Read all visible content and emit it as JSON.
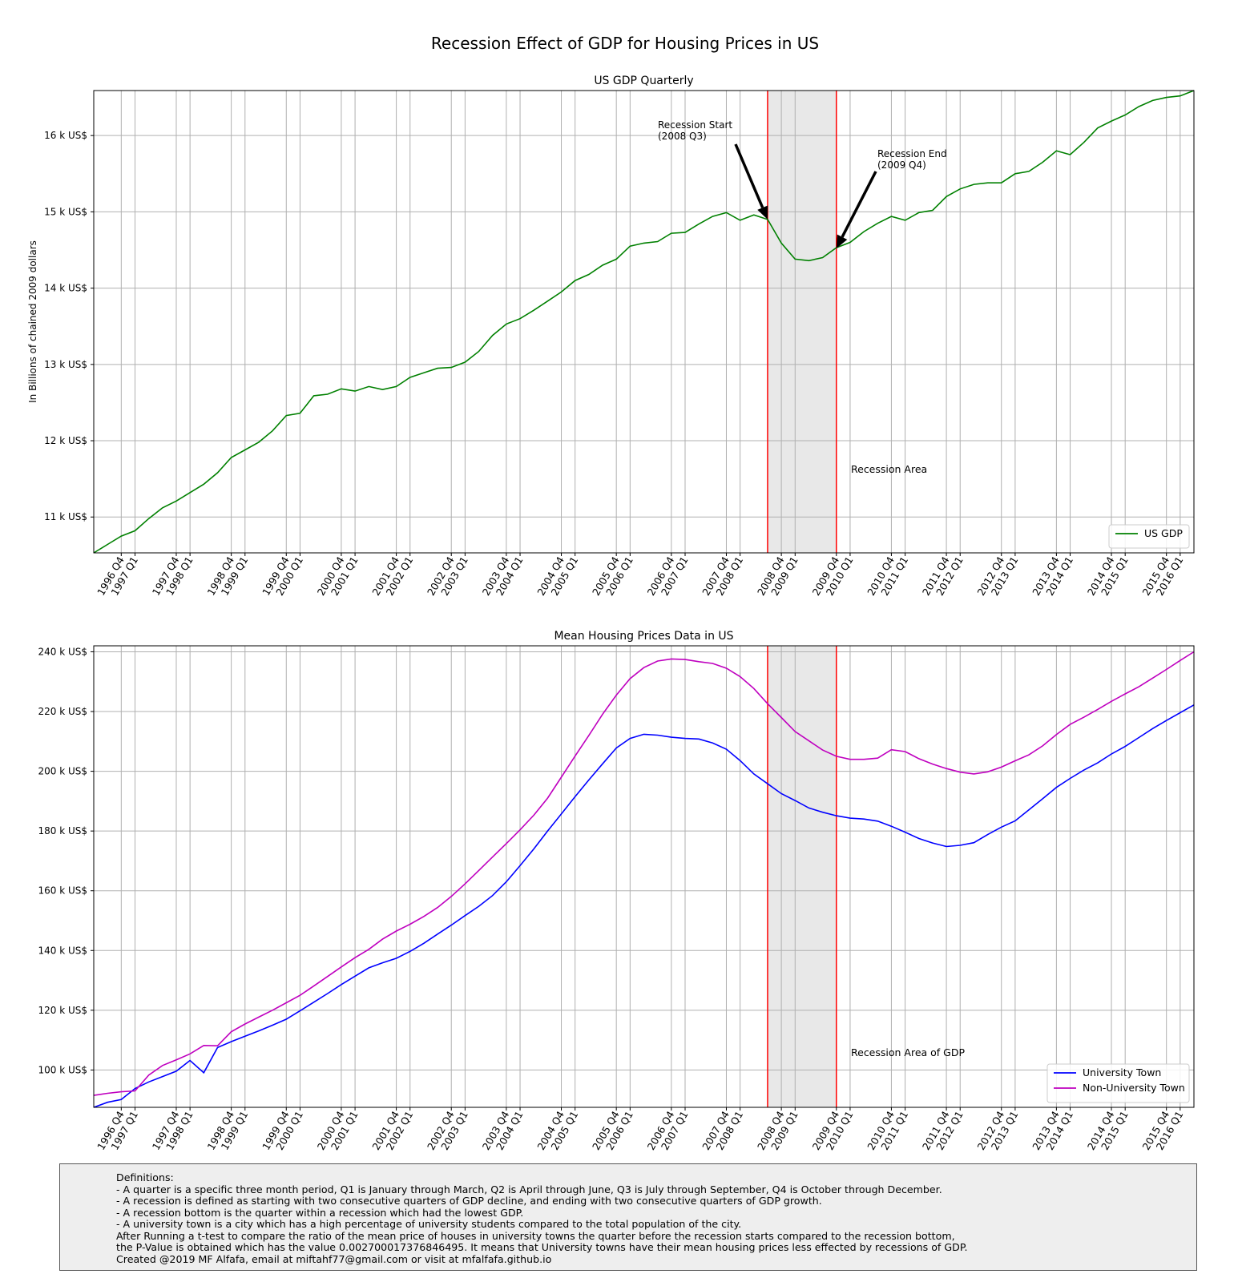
{
  "figure_title": "Recession Effect of GDP for Housing Prices in US",
  "colors": {
    "gdp": "#008000",
    "university": "#0000ff",
    "non_university": "#bf00bf",
    "recession_line": "#ff0000",
    "recession_shade": "#e8e8e8",
    "grid": "#b0b0b0"
  },
  "quarter_ticks": [
    "1996 Q4",
    "1997 Q1",
    "1997 Q4",
    "1998 Q1",
    "1998 Q4",
    "1999 Q1",
    "1999 Q4",
    "2000 Q1",
    "2000 Q4",
    "2001 Q1",
    "2001 Q4",
    "2002 Q1",
    "2002 Q4",
    "2003 Q1",
    "2003 Q4",
    "2004 Q1",
    "2004 Q4",
    "2005 Q1",
    "2005 Q4",
    "2006 Q1",
    "2006 Q4",
    "2007 Q1",
    "2007 Q4",
    "2008 Q1",
    "2008 Q4",
    "2009 Q1",
    "2009 Q4",
    "2010 Q1",
    "2010 Q4",
    "2011 Q1",
    "2011 Q4",
    "2012 Q1",
    "2012 Q4",
    "2013 Q1",
    "2013 Q4",
    "2014 Q1",
    "2014 Q4",
    "2015 Q1",
    "2015 Q4",
    "2016 Q1"
  ],
  "chart_data": [
    {
      "type": "line",
      "title": "US GDP Quarterly",
      "ylabel": "In Billions of chained 2009 dollars",
      "xlabel": "",
      "x_start": "1996 Q2",
      "x_end": "2016 Q2",
      "ylim": [
        10530,
        16590
      ],
      "yticks": [
        11000,
        12000,
        13000,
        14000,
        15000,
        16000
      ],
      "ytick_labels": [
        "11 k US$",
        "12 k US$",
        "13 k US$",
        "14 k US$",
        "15 k US$",
        "16 k US$"
      ],
      "grid": true,
      "legend": "lower right",
      "recession": {
        "start": "2008 Q3",
        "end": "2009 Q4"
      },
      "series": [
        {
          "name": "US GDP",
          "values": [
            10530,
            10640,
            10750,
            10820,
            10980,
            11120,
            11210,
            11320,
            11430,
            11580,
            11780,
            11880,
            11980,
            12130,
            12330,
            12360,
            12590,
            12610,
            12680,
            12650,
            12710,
            12670,
            12710,
            12830,
            12890,
            12950,
            12960,
            13030,
            13170,
            13380,
            13530,
            13600,
            13710,
            13830,
            13950,
            14100,
            14180,
            14300,
            14380,
            14550,
            14590,
            14610,
            14720,
            14730,
            14840,
            14940,
            14990,
            14890,
            14960,
            14900,
            14590,
            14380,
            14360,
            14400,
            14530,
            14600,
            14740,
            14850,
            14940,
            14890,
            14990,
            15020,
            15200,
            15300,
            15360,
            15380,
            15380,
            15500,
            15530,
            15650,
            15800,
            15750,
            15910,
            16100,
            16190,
            16270,
            16380,
            16460,
            16500,
            16520,
            16590
          ]
        }
      ],
      "annotations": [
        {
          "text_lines": [
            "Recession Start",
            "(2008 Q3)"
          ],
          "point": [
            "2008 Q3",
            14900
          ]
        },
        {
          "text_lines": [
            "Recession End",
            "(2009 Q4)"
          ],
          "point": [
            "2009 Q4",
            14520
          ]
        },
        {
          "text_lines": [
            "Recession Area"
          ]
        }
      ]
    },
    {
      "type": "line",
      "title": "Mean Housing Prices Data in US",
      "ylabel": "",
      "xlabel": "",
      "x_start": "1996 Q2",
      "x_end": "2016 Q2",
      "ylim": [
        87500,
        242000
      ],
      "yticks": [
        100000,
        120000,
        140000,
        160000,
        180000,
        200000,
        220000,
        240000
      ],
      "ytick_labels": [
        "100 k US$",
        "120 k US$",
        "140 k US$",
        "160 k US$",
        "180 k US$",
        "200 k US$",
        "220 k US$",
        "240 k US$"
      ],
      "grid": true,
      "legend": "lower right",
      "recession": {
        "start": "2008 Q3",
        "end": "2009 Q4"
      },
      "series": [
        {
          "name": "University Town",
          "values": [
            87500,
            89200,
            90100,
            93800,
            96000,
            97800,
            99600,
            103200,
            99100,
            107500,
            109500,
            111300,
            113100,
            115000,
            117000,
            119800,
            122700,
            125600,
            128600,
            131400,
            134200,
            135900,
            137400,
            139700,
            142400,
            145500,
            148500,
            151700,
            154800,
            158400,
            163000,
            168400,
            174000,
            180000,
            185700,
            191500,
            197100,
            202500,
            207800,
            211000,
            212400,
            212100,
            211400,
            211000,
            210800,
            209500,
            207400,
            203600,
            199100,
            195800,
            192500,
            190200,
            187700,
            186300,
            185100,
            184300,
            184000,
            183300,
            181600,
            179600,
            177500,
            176000,
            174800,
            175200,
            176100,
            178800,
            181300,
            183400,
            187100,
            190800,
            194600,
            197600,
            200400,
            202800,
            205800,
            208300,
            211300,
            214300,
            217000,
            219600,
            222200
          ]
        },
        {
          "name": "Non-University Town",
          "values": [
            91500,
            92200,
            92700,
            93000,
            98300,
            101500,
            103400,
            105400,
            108200,
            108100,
            112800,
            115400,
            117700,
            120000,
            122500,
            125000,
            128100,
            131300,
            134500,
            137600,
            140400,
            143800,
            146500,
            148800,
            151400,
            154400,
            158100,
            162300,
            166800,
            171300,
            175800,
            180400,
            185300,
            191000,
            198000,
            205100,
            212000,
            219100,
            225500,
            231000,
            234700,
            236900,
            237600,
            237400,
            236700,
            236100,
            234500,
            231700,
            227700,
            222600,
            218000,
            213300,
            210200,
            207100,
            205000,
            204000,
            204000,
            204400,
            207200,
            206600,
            204200,
            202400,
            200900,
            199700,
            199100,
            199800,
            201400,
            203500,
            205500,
            208500,
            212300,
            215700,
            218100,
            220700,
            223400,
            225900,
            228300,
            231200,
            234100,
            237100,
            240000
          ]
        }
      ],
      "annotations": [
        {
          "text_lines": [
            "Recession Area of GDP"
          ]
        }
      ]
    }
  ],
  "definitions": {
    "lines": [
      "Definitions:",
      "- A quarter is a specific three month period, Q1 is January through March, Q2 is April through June, Q3 is July through September, Q4 is October through December.",
      "- A recession is defined as starting with two consecutive quarters of GDP decline, and ending with two consecutive quarters of GDP growth.",
      "- A recession bottom is the quarter within a recession which had the lowest GDP.",
      "- A university town is a city which has a high percentage of university students compared to the total population of the city.",
      "After Running a t-test to compare the ratio of the mean price of houses in university towns the quarter before the recession starts compared to the recession bottom,",
      "the P-Value is obtained which has the value 0.002700017376846495. It means that University towns have their mean housing prices less effected by recessions of GDP.",
      "Created @2019 MF Alfafa, email at miftahf77@gmail.com or visit at mfalfafa.github.io"
    ]
  }
}
